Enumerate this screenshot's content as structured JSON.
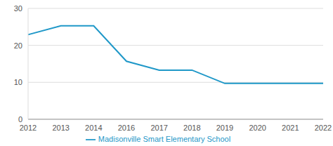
{
  "chart_data": {
    "type": "line",
    "categories": [
      "2012",
      "2013",
      "2014",
      "2016",
      "2017",
      "2018",
      "2019",
      "2020",
      "2021",
      "2022"
    ],
    "series": [
      {
        "name": "Madisonville Smart Elementary School",
        "color": "#1f98c8",
        "values": [
          22.9,
          25.3,
          25.3,
          15.7,
          13.3,
          13.3,
          9.7,
          9.7,
          9.7,
          9.7
        ]
      }
    ],
    "ylim": [
      0,
      30
    ],
    "yticks": [
      0,
      10,
      20,
      30
    ],
    "grid": true,
    "legend": "bottom"
  }
}
